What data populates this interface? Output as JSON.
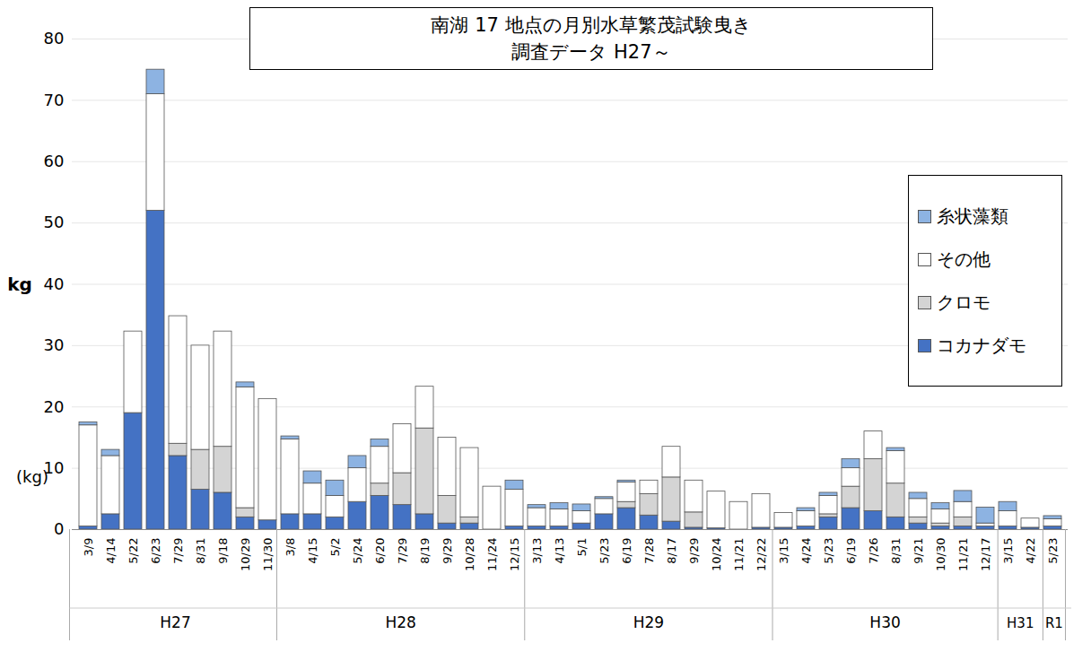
{
  "chart_data": {
    "type": "bar",
    "stacked": true,
    "title": "南湖 17 地点の月別水草繁茂試験曳き",
    "subtitle": "調査データ H27～",
    "y_label": "kg",
    "y_unit_note": "(kg)",
    "categories": [
      "3/9",
      "4/14",
      "5/22",
      "6/23",
      "7/29",
      "8/31",
      "9/18",
      "10/29",
      "11/30",
      "3/8",
      "4/15",
      "5/2",
      "5/24",
      "6/20",
      "7/29",
      "8/19",
      "9/29",
      "10/28",
      "11/24",
      "12/15",
      "3/13",
      "4/13",
      "5/1",
      "5/23",
      "6/19",
      "7/28",
      "8/17",
      "9/29",
      "10/24",
      "11/21",
      "12/22",
      "3/15",
      "4/24",
      "5/23",
      "6/19",
      "7/26",
      "8/31",
      "9/21",
      "10/30",
      "11/21",
      "12/17",
      "3/15",
      "4/22",
      "5/23"
    ],
    "category_groups": [
      "H27",
      "H27",
      "H27",
      "H27",
      "H27",
      "H27",
      "H27",
      "H27",
      "H27",
      "H28",
      "H28",
      "H28",
      "H28",
      "H28",
      "H28",
      "H28",
      "H28",
      "H28",
      "H28",
      "H28",
      "H29",
      "H29",
      "H29",
      "H29",
      "H29",
      "H29",
      "H29",
      "H29",
      "H29",
      "H29",
      "H29",
      "H30",
      "H30",
      "H30",
      "H30",
      "H30",
      "H30",
      "H30",
      "H30",
      "H30",
      "H30",
      "H31",
      "H31",
      "R1"
    ],
    "series": [
      {
        "name": "コカナダモ",
        "color": "#4472c4",
        "values": [
          0.5,
          2.5,
          19,
          52,
          12,
          6.5,
          6,
          2,
          1.5,
          2.5,
          2.5,
          2,
          4.5,
          5.5,
          4,
          2.5,
          1,
          1,
          0,
          0.5,
          0.5,
          0.5,
          1,
          2.5,
          3.5,
          2.3,
          1.3,
          0.3,
          0.2,
          0,
          0.3,
          0.3,
          0.5,
          2,
          3.5,
          3,
          2,
          1,
          0.5,
          0.5,
          0.5,
          0.5,
          0.3,
          0.5
        ]
      },
      {
        "name": "クロモ",
        "color": "#d4d4d4",
        "values": [
          0,
          0,
          0,
          0,
          2,
          6.5,
          7.5,
          1.5,
          0,
          0,
          0,
          0,
          0,
          2,
          5.2,
          14,
          4.5,
          1,
          0,
          0,
          0,
          0,
          0,
          0,
          1,
          3.5,
          7.2,
          2.5,
          0,
          0,
          0,
          0,
          0,
          0.5,
          3.5,
          8.5,
          5.5,
          1,
          0.5,
          1.5,
          0,
          0,
          0,
          0
        ]
      },
      {
        "name": "その他",
        "color": "#ffffff",
        "values": [
          16.5,
          9.5,
          13.3,
          19,
          20.8,
          17,
          18.8,
          19.7,
          19.8,
          12.2,
          5,
          3.5,
          5.5,
          6,
          8,
          6.8,
          9.5,
          11.3,
          7,
          6,
          3,
          2.8,
          2,
          2.5,
          3.2,
          2.2,
          5,
          5.2,
          6,
          4.5,
          5.5,
          2.4,
          2.5,
          3,
          3,
          4.5,
          5.3,
          3,
          2.3,
          2.5,
          0.5,
          2.5,
          1.5,
          1.2
        ]
      },
      {
        "name": "糸状藻類",
        "color": "#8db3e2",
        "values": [
          0.5,
          1,
          0,
          4,
          0,
          0,
          0,
          0.8,
          0,
          0.5,
          2,
          2.5,
          2,
          1.2,
          0,
          0,
          0,
          0,
          0,
          1.5,
          0.5,
          1,
          1.1,
          0.3,
          0.3,
          0,
          0,
          0,
          0,
          0,
          0,
          0,
          0.5,
          0.5,
          1.5,
          0,
          0.5,
          1,
          1,
          1.8,
          2.6,
          1.5,
          0,
          0.5
        ]
      }
    ],
    "ylim": [
      0,
      80
    ],
    "yticks": [
      0,
      10,
      20,
      30,
      40,
      50,
      60,
      70,
      80
    ],
    "grid": true,
    "legend": "right"
  }
}
